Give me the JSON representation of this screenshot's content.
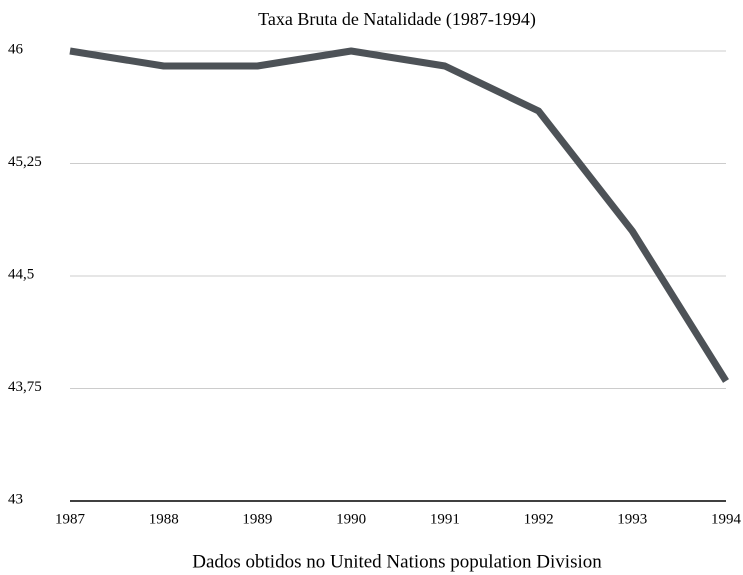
{
  "chart_data": {
    "type": "line",
    "title": "Taxa Bruta de Natalidade (1987-1994)",
    "xlabel": "Dados obtidos no United Nations population Division",
    "categories": [
      "1987",
      "1988",
      "1989",
      "1990",
      "1991",
      "1992",
      "1993",
      "1994"
    ],
    "series": [
      {
        "name": "Taxa Bruta de Natalidade",
        "color": "#4d5257",
        "values": [
          46,
          45.9,
          45.9,
          46,
          45.9,
          45.6,
          44.8,
          43.8
        ]
      }
    ],
    "ylim": [
      43,
      46
    ],
    "yticks": [
      43,
      {
        "value": 43.75,
        "label": "43,75"
      },
      {
        "value": 44.5,
        "label": "44,5"
      },
      {
        "value": 45.25,
        "label": "45,25"
      },
      46
    ],
    "grid": true
  }
}
